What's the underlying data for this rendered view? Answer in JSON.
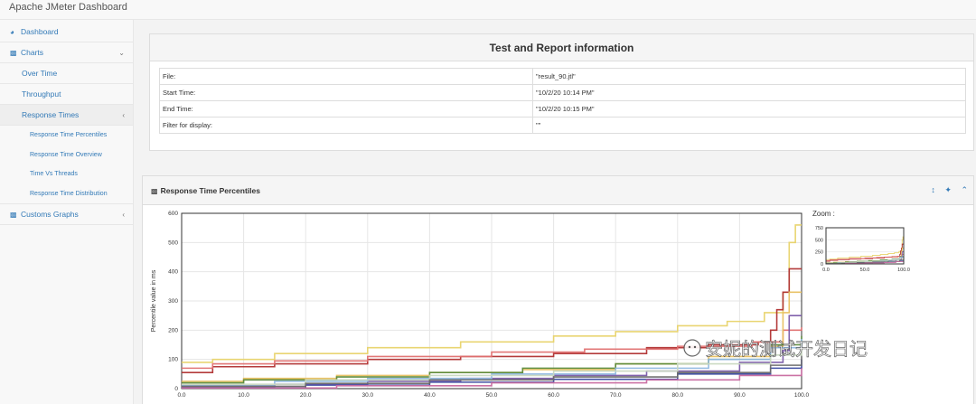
{
  "app": {
    "title": "Apache JMeter Dashboard"
  },
  "sidebar": {
    "dashboard": "Dashboard",
    "charts": "Charts",
    "over_time": "Over Time",
    "throughput": "Throughput",
    "response_times": "Response Times",
    "sub_items": [
      "Response Time Percentiles",
      "Response Time Overview",
      "Time Vs Threads",
      "Response Time Distribution"
    ],
    "custom_graphs": "Customs Graphs",
    "icons": {
      "dashboard": "dashboard-icon",
      "charts": "bar-chart-icon",
      "custom": "bar-chart-icon"
    }
  },
  "report_info": {
    "title": "Test and Report information",
    "rows": [
      {
        "key": "File:",
        "value": "\"result_90.jtl\""
      },
      {
        "key": "Start Time:",
        "value": "\"10/2/20 10:14 PM\""
      },
      {
        "key": "End Time:",
        "value": "\"10/2/20 10:15 PM\""
      },
      {
        "key": "Filter for display:",
        "value": "\"\""
      }
    ]
  },
  "chart_panel": {
    "title": "Response Time Percentiles",
    "zoom_label": "Zoom :",
    "tool_icons": [
      "resize-icon",
      "wrench-icon",
      "collapse-icon"
    ]
  },
  "watermark": "安妮的测试开发日记",
  "chart_data": {
    "type": "line",
    "xlabel": "",
    "ylabel": "Percentile value in ms",
    "xlim": [
      0,
      100
    ],
    "ylim": [
      0,
      600
    ],
    "x_ticks": [
      "0.0",
      "10.0",
      "20.0",
      "30.0",
      "40.0",
      "50.0",
      "60.0",
      "70.0",
      "80.0",
      "90.0",
      "100.0"
    ],
    "y_ticks": [
      "0",
      "100",
      "200",
      "300",
      "400",
      "500",
      "600"
    ],
    "grid": true,
    "zoom": {
      "ylim": [
        0,
        750
      ],
      "x_ticks": [
        "0.0",
        "50.0",
        "100.0"
      ],
      "y_ticks": [
        "0",
        "250",
        "500",
        "750"
      ]
    },
    "series": [
      {
        "color": "#e8d36a",
        "points": [
          [
            0,
            90
          ],
          [
            5,
            100
          ],
          [
            15,
            120
          ],
          [
            30,
            140
          ],
          [
            45,
            160
          ],
          [
            60,
            180
          ],
          [
            70,
            195
          ],
          [
            80,
            215
          ],
          [
            88,
            230
          ],
          [
            94,
            260
          ],
          [
            97,
            330
          ],
          [
            98,
            500
          ],
          [
            99,
            560
          ],
          [
            100,
            560
          ]
        ]
      },
      {
        "color": "#b03030",
        "points": [
          [
            0,
            55
          ],
          [
            5,
            75
          ],
          [
            15,
            85
          ],
          [
            30,
            100
          ],
          [
            45,
            110
          ],
          [
            60,
            120
          ],
          [
            75,
            140
          ],
          [
            85,
            150
          ],
          [
            93,
            160
          ],
          [
            95,
            200
          ],
          [
            96,
            270
          ],
          [
            97,
            330
          ],
          [
            98,
            410
          ],
          [
            100,
            410
          ]
        ]
      },
      {
        "color": "#e07070",
        "points": [
          [
            0,
            70
          ],
          [
            5,
            85
          ],
          [
            15,
            95
          ],
          [
            30,
            110
          ],
          [
            50,
            125
          ],
          [
            65,
            135
          ],
          [
            80,
            145
          ],
          [
            92,
            160
          ],
          [
            97,
            200
          ],
          [
            100,
            210
          ]
        ]
      },
      {
        "color": "#e8c060",
        "points": [
          [
            0,
            25
          ],
          [
            10,
            35
          ],
          [
            25,
            45
          ],
          [
            40,
            55
          ],
          [
            55,
            65
          ],
          [
            70,
            85
          ],
          [
            85,
            110
          ],
          [
            95,
            145
          ],
          [
            97,
            260
          ],
          [
            98,
            330
          ],
          [
            100,
            330
          ]
        ]
      },
      {
        "color": "#5a8a3a",
        "points": [
          [
            0,
            20
          ],
          [
            10,
            30
          ],
          [
            25,
            40
          ],
          [
            40,
            55
          ],
          [
            55,
            70
          ],
          [
            70,
            85
          ],
          [
            85,
            100
          ],
          [
            95,
            150
          ],
          [
            100,
            180
          ]
        ]
      },
      {
        "color": "#7a5aa8",
        "points": [
          [
            0,
            5
          ],
          [
            15,
            15
          ],
          [
            30,
            25
          ],
          [
            45,
            35
          ],
          [
            60,
            45
          ],
          [
            75,
            60
          ],
          [
            90,
            90
          ],
          [
            97,
            130
          ],
          [
            98,
            250
          ],
          [
            100,
            250
          ]
        ]
      },
      {
        "color": "#8fb8e0",
        "points": [
          [
            0,
            10
          ],
          [
            15,
            25
          ],
          [
            30,
            35
          ],
          [
            50,
            50
          ],
          [
            70,
            70
          ],
          [
            85,
            100
          ],
          [
            95,
            140
          ],
          [
            100,
            170
          ]
        ]
      },
      {
        "color": "#3a4aa0",
        "points": [
          [
            0,
            3
          ],
          [
            20,
            12
          ],
          [
            40,
            22
          ],
          [
            60,
            32
          ],
          [
            80,
            50
          ],
          [
            95,
            70
          ],
          [
            100,
            100
          ]
        ]
      },
      {
        "color": "#c8d8c0",
        "points": [
          [
            0,
            15
          ],
          [
            20,
            30
          ],
          [
            40,
            45
          ],
          [
            60,
            60
          ],
          [
            80,
            85
          ],
          [
            95,
            115
          ],
          [
            100,
            140
          ]
        ]
      },
      {
        "color": "#6a6a6a",
        "points": [
          [
            0,
            8
          ],
          [
            20,
            18
          ],
          [
            40,
            30
          ],
          [
            60,
            40
          ],
          [
            80,
            55
          ],
          [
            95,
            80
          ],
          [
            100,
            110
          ]
        ]
      },
      {
        "color": "#c86aa0",
        "points": [
          [
            0,
            2
          ],
          [
            25,
            10
          ],
          [
            50,
            20
          ],
          [
            75,
            30
          ],
          [
            90,
            45
          ],
          [
            100,
            70
          ]
        ]
      }
    ]
  }
}
